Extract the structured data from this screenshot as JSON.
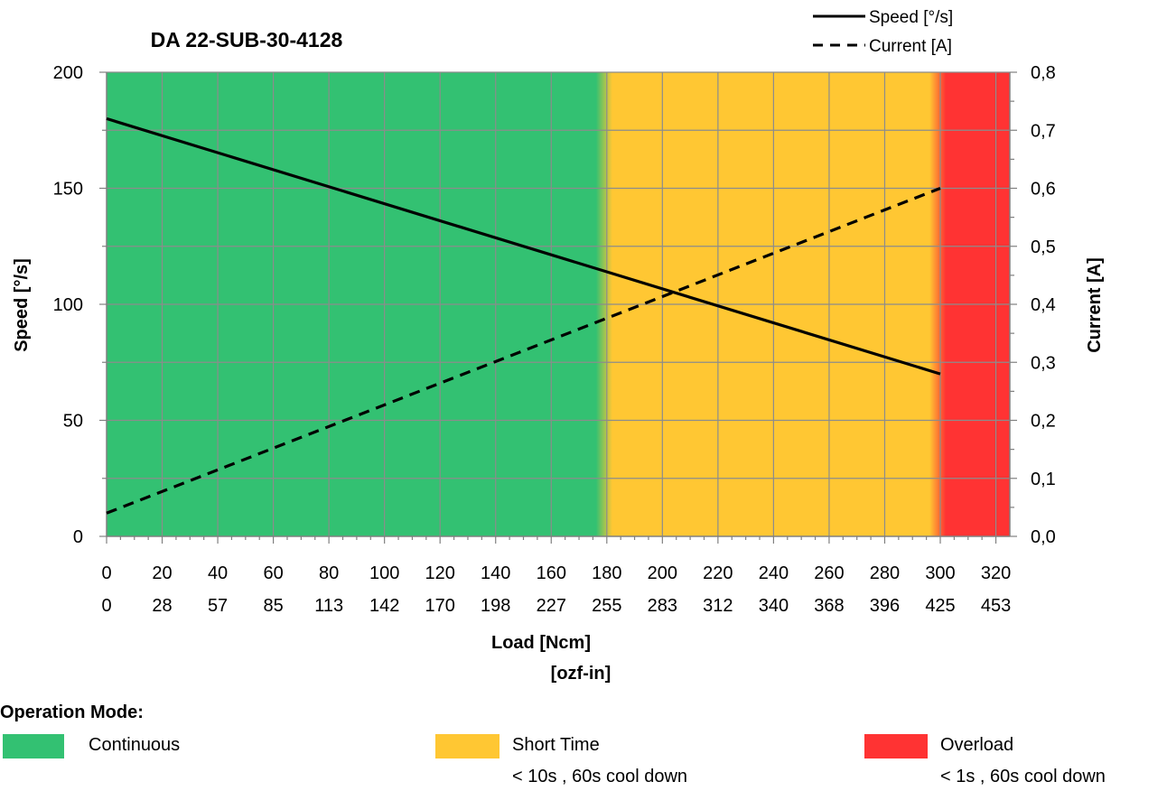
{
  "chart_data": {
    "type": "line",
    "title": "DA 22-SUB-30-4128",
    "xlabel": "Load [Ncm]",
    "xlabel2": "[ozf-in]",
    "ylabel": "Speed  [°/s]",
    "y2label": "Current  [A]",
    "xlim": [
      0,
      325
    ],
    "ylim": [
      0,
      200
    ],
    "y2lim": [
      0,
      0.8
    ],
    "x_ticks": [
      "0",
      "20",
      "40",
      "60",
      "80",
      "100",
      "120",
      "140",
      "160",
      "180",
      "200",
      "220",
      "240",
      "260",
      "280",
      "300",
      "320"
    ],
    "x_ticks_secondary": [
      "0",
      "28",
      "57",
      "85",
      "113",
      "142",
      "170",
      "198",
      "227",
      "255",
      "283",
      "312",
      "340",
      "368",
      "396",
      "425",
      "453"
    ],
    "y_ticks": [
      "0",
      "50",
      "100",
      "150",
      "200"
    ],
    "y2_ticks": [
      "0,0",
      "0,1",
      "0,2",
      "0,3",
      "0,4",
      "0,5",
      "0,6",
      "0,7",
      "0,8"
    ],
    "grid": true,
    "legend_position": "top-right",
    "series": [
      {
        "name": "Speed [°/s]",
        "axis": "left",
        "style": "solid",
        "color": "#000000",
        "x": [
          0,
          300
        ],
        "y": [
          180,
          70
        ]
      },
      {
        "name": "Current [A]",
        "axis": "right",
        "style": "dashed",
        "color": "#000000",
        "x": [
          0,
          300
        ],
        "y": [
          0.04,
          0.6
        ]
      }
    ],
    "zones": [
      {
        "name": "Continuous",
        "from": 0,
        "to": 180,
        "color": "#33C172"
      },
      {
        "name": "Short Time",
        "from": 180,
        "to": 300,
        "color": "#FFC733"
      },
      {
        "name": "Overload",
        "from": 300,
        "to": 325,
        "color": "#FF3333"
      }
    ]
  },
  "operation_mode": {
    "title": "Operation Mode:",
    "items": [
      {
        "label": "Continuous",
        "note": "",
        "color": "#33C172"
      },
      {
        "label": "Short Time",
        "note": "< 10s , 60s cool down",
        "color": "#FFC733"
      },
      {
        "label": "Overload",
        "note": "< 1s , 60s cool down",
        "color": "#FF3333"
      }
    ]
  }
}
